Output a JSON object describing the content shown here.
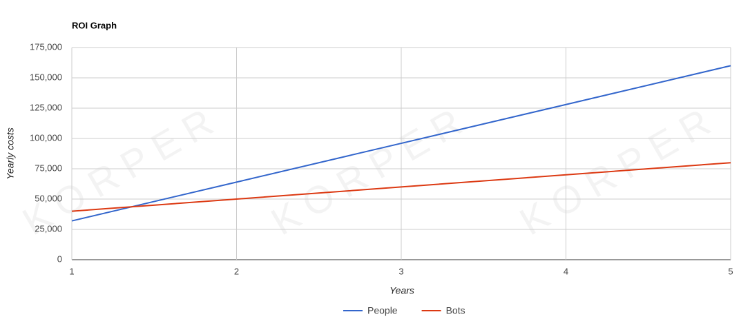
{
  "chart_data": {
    "type": "line",
    "title": "ROI Graph",
    "watermark": "KORPER",
    "x_label": "Years",
    "y_label": "Yearly costs",
    "x": [
      1,
      2,
      3,
      4,
      5
    ],
    "series": [
      {
        "name": "People",
        "color": "#3366cc",
        "values": [
          32000,
          64000,
          96000,
          128000,
          160000
        ]
      },
      {
        "name": "Bots",
        "color": "#dc3912",
        "values": [
          40000,
          50000,
          60000,
          70000,
          80000
        ]
      }
    ],
    "xlim": [
      1,
      5
    ],
    "xticks": [
      1,
      2,
      3,
      4,
      5
    ],
    "ylim": [
      0,
      175000
    ],
    "yticks": [
      0,
      {
        "value": 25000,
        "label": "25,000"
      },
      {
        "value": 50000,
        "label": "50,000"
      },
      {
        "value": 75000,
        "label": "75,000"
      },
      {
        "value": 100000,
        "label": "100,000"
      },
      {
        "value": 125000,
        "label": "125,000"
      },
      {
        "value": 150000,
        "label": "150,000"
      },
      {
        "value": 175000,
        "label": "175,000"
      }
    ],
    "grid": true,
    "legend": "bottom"
  }
}
